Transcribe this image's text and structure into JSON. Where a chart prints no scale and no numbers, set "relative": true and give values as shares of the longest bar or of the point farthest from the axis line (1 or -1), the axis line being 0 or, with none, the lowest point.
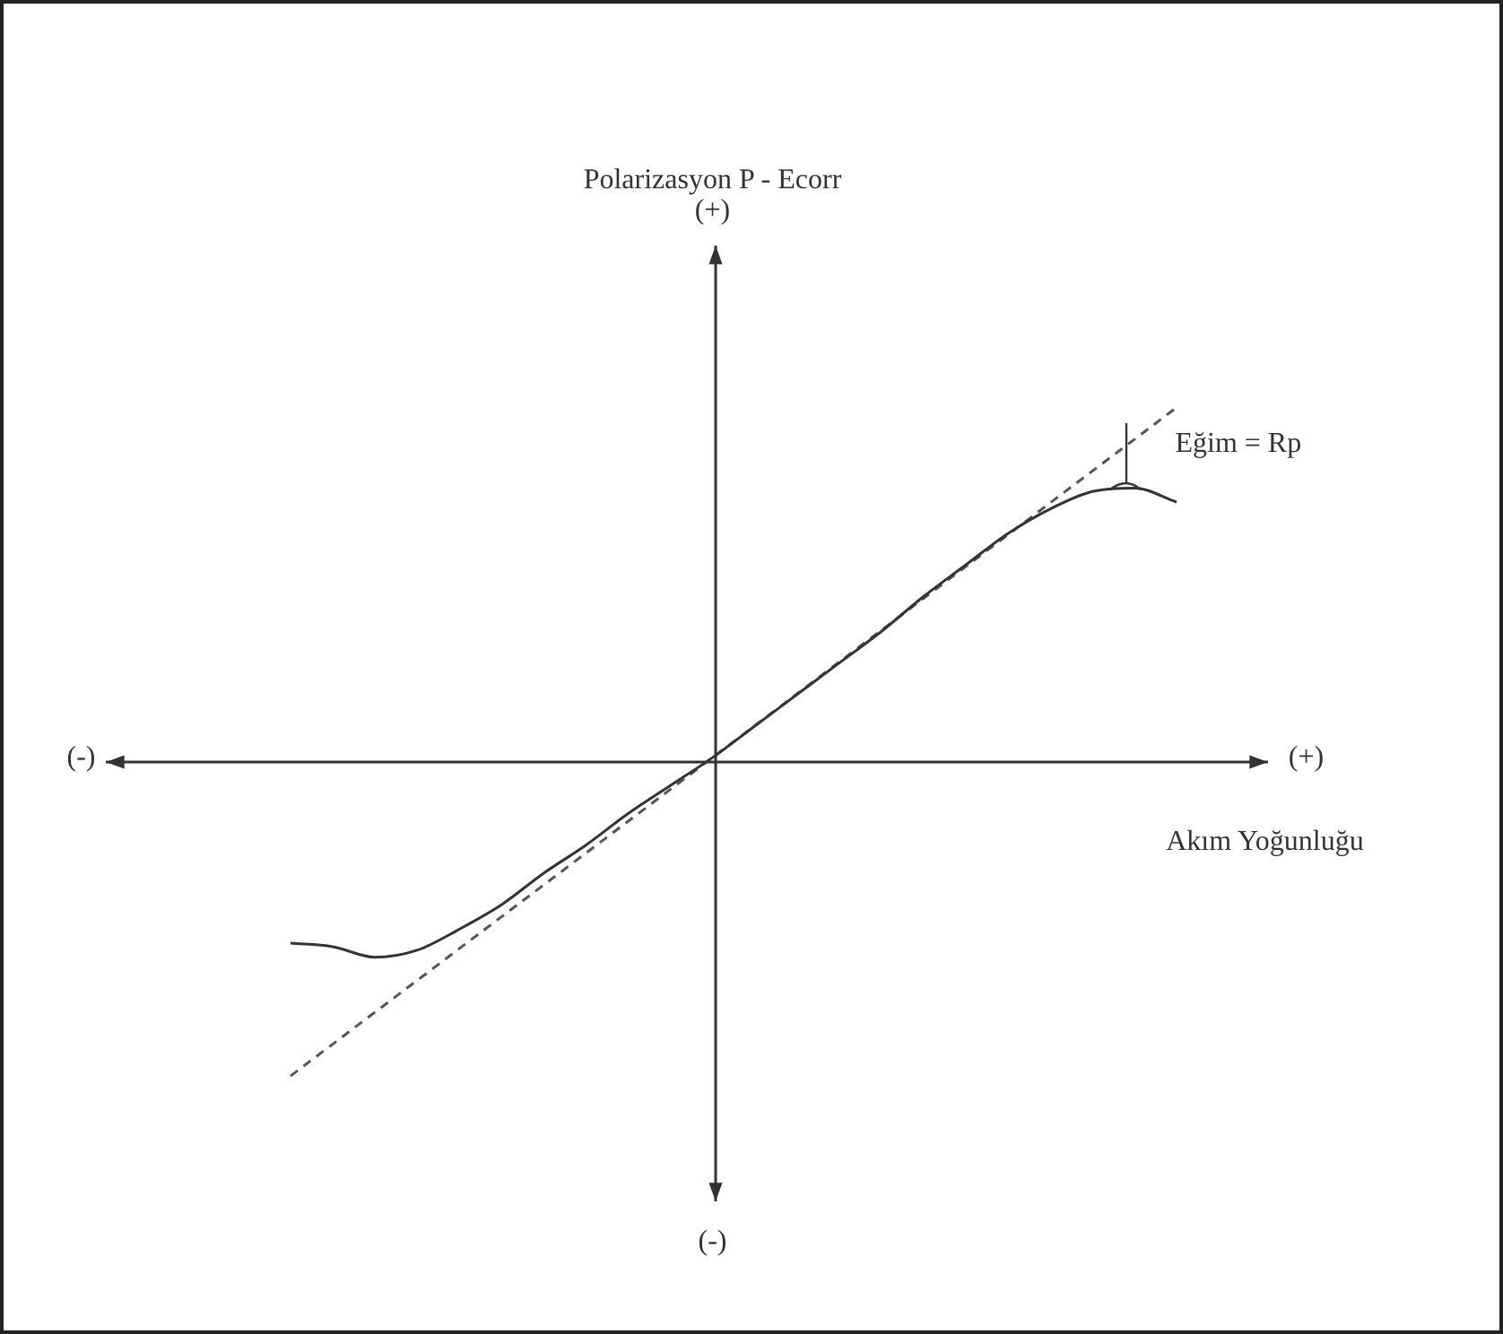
{
  "chart_data": {
    "type": "line",
    "relative": true,
    "xlabel": "Akım Yoğunluğu",
    "categories": [
      null,
      null,
      null,
      null,
      null,
      null,
      null,
      null,
      null,
      null,
      null,
      null,
      null,
      null,
      null,
      null,
      null,
      null,
      null,
      null,
      null,
      null
    ],
    "series": [
      {
        "color": "#333333",
        "line_style": "solid",
        "values": [
          -0.53,
          -0.54,
          -0.57,
          -0.55,
          -0.49,
          -0.42,
          -0.33,
          -0.25,
          -0.16,
          -0.08,
          0,
          0.09,
          0.18,
          0.27,
          0.36,
          0.46,
          0.55,
          0.64,
          0.71,
          0.76,
          0.77,
          0.73
        ]
      },
      {
        "color": "#555555",
        "line_style": "dashed",
        "values": [
          -0.909,
          null,
          null,
          null,
          null,
          null,
          null,
          null,
          null,
          null,
          null,
          null,
          null,
          null,
          null,
          null,
          null,
          null,
          null,
          null,
          null,
          1
        ]
      }
    ],
    "annotations": [
      "Polarizasyon P - Ecorr",
      "(+)",
      "(-)",
      "(-)",
      "(+)",
      "Eğim = Rp"
    ],
    "marker": "none"
  }
}
